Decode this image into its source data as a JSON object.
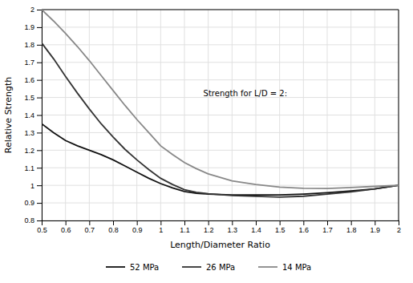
{
  "chart_data": {
    "type": "line",
    "xlabel": "Length/Diameter Ratio",
    "ylabel": "Relative Strength",
    "annotation": "Strength for L/D = 2:",
    "x": [
      0.5,
      0.55,
      0.6,
      0.65,
      0.7,
      0.75,
      0.8,
      0.85,
      0.9,
      0.95,
      1.0,
      1.05,
      1.1,
      1.15,
      1.2,
      1.3,
      1.4,
      1.5,
      1.6,
      1.7,
      1.8,
      1.9,
      2.0
    ],
    "series": [
      {
        "name": "52 MPa",
        "color": "#111111",
        "values": [
          1.35,
          1.3,
          1.255,
          1.225,
          1.2,
          1.175,
          1.145,
          1.11,
          1.075,
          1.04,
          1.01,
          0.985,
          0.965,
          0.955,
          0.95,
          0.945,
          0.945,
          0.945,
          0.95,
          0.958,
          0.968,
          0.98,
          1.0
        ]
      },
      {
        "name": "26 MPa",
        "color": "#333333",
        "values": [
          1.81,
          1.72,
          1.62,
          1.525,
          1.435,
          1.35,
          1.275,
          1.205,
          1.145,
          1.09,
          1.04,
          1.005,
          0.975,
          0.96,
          0.952,
          0.942,
          0.937,
          0.933,
          0.938,
          0.95,
          0.963,
          0.98,
          1.0
        ]
      },
      {
        "name": "14 MPa",
        "color": "#888888",
        "values": [
          2.0,
          1.935,
          1.865,
          1.79,
          1.71,
          1.625,
          1.54,
          1.455,
          1.375,
          1.3,
          1.225,
          1.175,
          1.13,
          1.095,
          1.065,
          1.025,
          1.005,
          0.99,
          0.983,
          0.982,
          0.988,
          0.994,
          1.0
        ]
      }
    ],
    "xlim": [
      0.5,
      2
    ],
    "ylim": [
      0.8,
      2
    ],
    "xticks": [
      0.5,
      0.6,
      0.7,
      0.8,
      0.9,
      1,
      1.1,
      1.2,
      1.3,
      1.4,
      1.5,
      1.6,
      1.7,
      1.8,
      1.9,
      2
    ],
    "yticks": [
      0.8,
      0.9,
      1,
      1.1,
      1.2,
      1.3,
      1.4,
      1.5,
      1.6,
      1.7,
      1.8,
      1.9,
      2
    ],
    "grid": true,
    "legend": "bottom"
  }
}
